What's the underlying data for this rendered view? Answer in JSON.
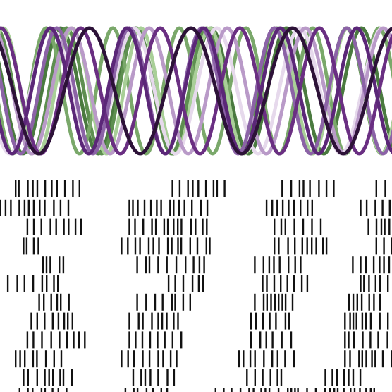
{
  "chart_data": [
    {
      "type": "line",
      "title": "",
      "xlabel": "",
      "ylabel": "",
      "axes_visible": false,
      "grid": false,
      "legend": "none",
      "xlim": [
        0,
        1
      ],
      "ylim": [
        -1,
        1
      ],
      "series": [
        {
          "color": "#4a7a3f",
          "amplitude": 1,
          "frequency": 5.4,
          "phase": 0.1
        },
        {
          "color": "#5e8f50",
          "amplitude": 1,
          "frequency": 5.8,
          "phase": -0.05
        },
        {
          "color": "#7aa86a",
          "amplitude": 1,
          "frequency": 6.1,
          "phase": 0.2
        },
        {
          "color": "#a9cf98",
          "amplitude": 1,
          "frequency": 5.9,
          "phase": -0.15
        },
        {
          "color": "#e6d9ec",
          "amplitude": 1,
          "frequency": 4.9,
          "phase": 0.3
        },
        {
          "color": "#b99ac8",
          "amplitude": 1,
          "frequency": 5.2,
          "phase": 0.0
        },
        {
          "color": "#8b63a6",
          "amplitude": 1,
          "frequency": 5.6,
          "phase": 0.12
        },
        {
          "color": "#6a2f82",
          "amplitude": 1,
          "frequency": 5.1,
          "phase": -0.1
        },
        {
          "color": "#5b2778",
          "amplitude": 1,
          "frequency": 5.3,
          "phase": 0.25
        },
        {
          "color": "#2d1238",
          "amplitude": 1,
          "frequency": 4.0,
          "phase": 0.05
        }
      ]
    },
    {
      "type": "eventplot",
      "title": "",
      "xlabel": "",
      "ylabel": "",
      "axes_visible": false,
      "grid": false,
      "legend": "none",
      "color": "#111111",
      "rows": 12,
      "xlim": [
        0,
        1
      ],
      "clusters": [
        {
          "start": [
            0.04,
            0.0,
            0.07,
            0.06,
            0.11,
            0.02,
            0.1,
            0.08,
            0.07,
            0.04,
            0.06,
            0.05
          ],
          "width": [
            0.17,
            0.19,
            0.14,
            0.05,
            0.07,
            0.14,
            0.09,
            0.12,
            0.15,
            0.12,
            0.14,
            0.12
          ]
        },
        {
          "start": [
            0.44,
            0.33,
            0.33,
            0.31,
            0.35,
            0.43,
            0.35,
            0.33,
            0.33,
            0.31,
            0.34,
            0.32
          ],
          "width": [
            0.14,
            0.2,
            0.2,
            0.23,
            0.18,
            0.1,
            0.14,
            0.13,
            0.15,
            0.15,
            0.12,
            0.12
          ]
        },
        {
          "start": [
            0.72,
            0.68,
            0.7,
            0.7,
            0.65,
            0.67,
            0.65,
            0.64,
            0.64,
            0.61,
            0.63,
            0.55
          ],
          "width": [
            0.14,
            0.12,
            0.14,
            0.14,
            0.12,
            0.13,
            0.11,
            0.11,
            0.11,
            0.14,
            0.09,
            0.21
          ]
        },
        {
          "start": [
            0.96,
            0.92,
            0.94,
            0.96,
            0.9,
            0.92,
            0.89,
            0.88,
            0.88,
            0.88,
            0.83,
            0.76
          ],
          "width": [
            0.04,
            0.08,
            0.06,
            0.04,
            0.1,
            0.08,
            0.09,
            0.12,
            0.12,
            0.12,
            0.1,
            0.2
          ]
        }
      ]
    }
  ]
}
